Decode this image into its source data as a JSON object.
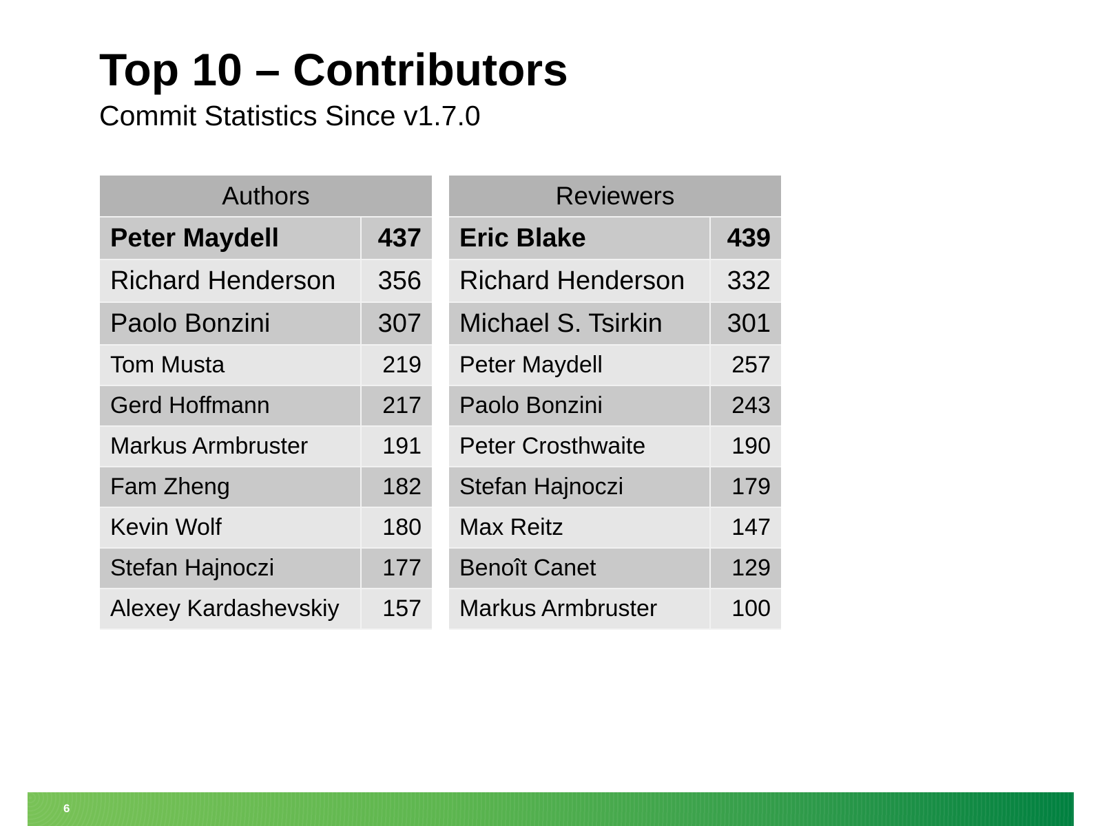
{
  "slide": {
    "title": "Top 10 – Contributors",
    "subtitle": "Commit Statistics Since v1.7.0",
    "page_number": "6",
    "colors": {
      "header": "#b3b3b3",
      "row_dark": "#c9c9c9",
      "row_light": "#e6e6e6",
      "band_start": "#79c257",
      "band_end": "#008040"
    }
  },
  "authors": {
    "header": "Authors",
    "rows": [
      {
        "name": "Peter Maydell",
        "count": "437"
      },
      {
        "name": "Richard Henderson",
        "count": "356"
      },
      {
        "name": "Paolo Bonzini",
        "count": "307"
      },
      {
        "name": "Tom Musta",
        "count": "219"
      },
      {
        "name": "Gerd Hoffmann",
        "count": "217"
      },
      {
        "name": "Markus Armbruster",
        "count": "191"
      },
      {
        "name": "Fam Zheng",
        "count": "182"
      },
      {
        "name": "Kevin Wolf",
        "count": "180"
      },
      {
        "name": "Stefan Hajnoczi",
        "count": "177"
      },
      {
        "name": "Alexey Kardashevskiy",
        "count": "157"
      }
    ]
  },
  "reviewers": {
    "header": "Reviewers",
    "rows": [
      {
        "name": "Eric Blake",
        "count": "439"
      },
      {
        "name": "Richard Henderson",
        "count": "332"
      },
      {
        "name": "Michael S. Tsirkin",
        "count": "301"
      },
      {
        "name": "Peter Maydell",
        "count": "257"
      },
      {
        "name": "Paolo Bonzini",
        "count": "243"
      },
      {
        "name": "Peter Crosthwaite",
        "count": "190"
      },
      {
        "name": "Stefan Hajnoczi",
        "count": "179"
      },
      {
        "name": "Max Reitz",
        "count": "147"
      },
      {
        "name": "Benoît Canet",
        "count": "129"
      },
      {
        "name": "Markus Armbruster",
        "count": "100"
      }
    ]
  }
}
